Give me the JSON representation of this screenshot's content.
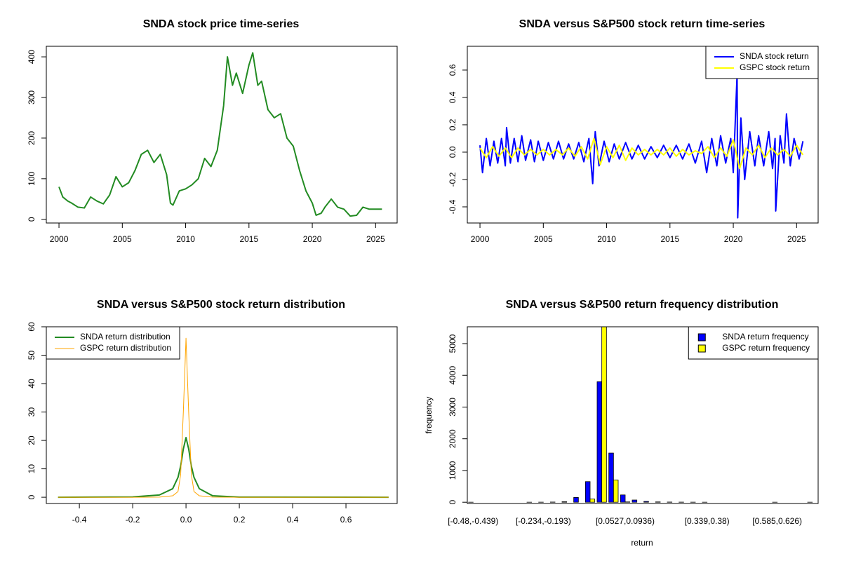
{
  "chart_data": [
    {
      "type": "line",
      "title": "SNDA stock price time-series",
      "color": "#228b22",
      "x": [
        2000,
        2000.3,
        2000.7,
        2001,
        2001.5,
        2002,
        2002.5,
        2003,
        2003.5,
        2004,
        2004.5,
        2005,
        2005.5,
        2006,
        2006.5,
        2007,
        2007.5,
        2008,
        2008.5,
        2008.8,
        2009,
        2009.5,
        2010,
        2010.5,
        2011,
        2011.5,
        2012,
        2012.5,
        2013,
        2013.3,
        2013.7,
        2014,
        2014.5,
        2015,
        2015.3,
        2015.7,
        2016,
        2016.5,
        2017,
        2017.5,
        2018,
        2018.5,
        2019,
        2019.5,
        2020,
        2020.3,
        2020.7,
        2021,
        2021.5,
        2022,
        2022.5,
        2023,
        2023.5,
        2024,
        2024.5,
        2025.5
      ],
      "values": [
        80,
        55,
        45,
        40,
        30,
        28,
        55,
        45,
        38,
        60,
        105,
        80,
        90,
        120,
        160,
        170,
        140,
        160,
        110,
        40,
        35,
        70,
        75,
        85,
        100,
        150,
        130,
        170,
        280,
        400,
        330,
        360,
        310,
        380,
        410,
        330,
        340,
        270,
        250,
        260,
        200,
        180,
        120,
        70,
        40,
        10,
        15,
        30,
        50,
        30,
        25,
        8,
        10,
        30,
        25,
        25
      ],
      "xlim": [
        1999,
        2026.7
      ],
      "xticks": [
        2000,
        2005,
        2010,
        2015,
        2020,
        2025
      ],
      "ylim": [
        -9,
        426
      ],
      "yticks": [
        0,
        100,
        200,
        300,
        400
      ]
    },
    {
      "type": "line",
      "title": "SNDA versus S&P500 stock return time-series",
      "legend": "topright",
      "series": [
        {
          "name": "SNDA stock return",
          "color": "#0000ff",
          "x": [
            2000,
            2000.2,
            2000.5,
            2000.8,
            2001.1,
            2001.4,
            2001.7,
            2002,
            2002.1,
            2002.4,
            2002.7,
            2003,
            2003.3,
            2003.6,
            2004,
            2004.3,
            2004.6,
            2005,
            2005.4,
            2005.8,
            2006.2,
            2006.6,
            2007,
            2007.4,
            2007.8,
            2008.2,
            2008.6,
            2008.9,
            2009.1,
            2009.4,
            2009.8,
            2010.2,
            2010.6,
            2011,
            2011.5,
            2012,
            2012.5,
            2013,
            2013.5,
            2014,
            2014.5,
            2015,
            2015.5,
            2016,
            2016.5,
            2017,
            2017.5,
            2017.9,
            2018.3,
            2018.7,
            2019,
            2019.4,
            2019.8,
            2020,
            2020.3,
            2020.35,
            2020.6,
            2020.9,
            2021.3,
            2021.7,
            2022,
            2022.4,
            2022.8,
            2023.1,
            2023.3,
            2023.35,
            2023.7,
            2024,
            2024.2,
            2024.5,
            2024.8,
            2025.2,
            2025.5
          ],
          "values": [
            0.05,
            -0.15,
            0.1,
            -0.1,
            0.08,
            -0.08,
            0.1,
            -0.1,
            0.18,
            -0.08,
            0.1,
            -0.07,
            0.12,
            -0.06,
            0.09,
            -0.07,
            0.08,
            -0.06,
            0.07,
            -0.05,
            0.08,
            -0.05,
            0.06,
            -0.05,
            0.07,
            -0.07,
            0.1,
            -0.23,
            0.15,
            -0.1,
            0.08,
            -0.07,
            0.06,
            -0.05,
            0.07,
            -0.05,
            0.05,
            -0.05,
            0.04,
            -0.04,
            0.05,
            -0.04,
            0.05,
            -0.05,
            0.06,
            -0.08,
            0.08,
            -0.15,
            0.1,
            -0.1,
            0.12,
            -0.08,
            0.1,
            -0.15,
            0.57,
            -0.48,
            0.25,
            -0.2,
            0.15,
            -0.1,
            0.12,
            -0.1,
            0.15,
            -0.12,
            0.1,
            -0.43,
            0.12,
            -0.08,
            0.28,
            -0.1,
            0.1,
            -0.05,
            0.08
          ]
        },
        {
          "name": "GSPC stock return",
          "color": "#ffff00",
          "x": [
            2000,
            2000.5,
            2001,
            2001.5,
            2002,
            2002.5,
            2003,
            2003.5,
            2004,
            2004.5,
            2005,
            2005.5,
            2006,
            2006.5,
            2007,
            2007.5,
            2008,
            2008.5,
            2009,
            2009.5,
            2010,
            2010.5,
            2011,
            2011.5,
            2012,
            2012.5,
            2013,
            2013.5,
            2014,
            2014.5,
            2015,
            2015.5,
            2016,
            2016.5,
            2017,
            2017.5,
            2018,
            2018.5,
            2019,
            2019.5,
            2020,
            2020.5,
            2021,
            2021.5,
            2022,
            2022.5,
            2023,
            2023.5,
            2024,
            2024.5,
            2025,
            2025.5
          ],
          "values": [
            0.03,
            -0.04,
            0.04,
            -0.03,
            0.03,
            -0.04,
            0.03,
            -0.02,
            0.02,
            -0.02,
            0.02,
            -0.02,
            0.02,
            -0.02,
            0.03,
            -0.03,
            0.04,
            -0.05,
            0.1,
            -0.09,
            0.04,
            -0.04,
            0.05,
            -0.06,
            0.03,
            -0.02,
            0.02,
            -0.02,
            0.02,
            -0.02,
            0.03,
            -0.03,
            0.02,
            -0.02,
            0.01,
            -0.01,
            0.04,
            -0.04,
            0.03,
            -0.03,
            0.09,
            -0.12,
            0.03,
            -0.02,
            0.05,
            -0.04,
            0.03,
            -0.02,
            0.02,
            -0.03,
            0.05,
            -0.02
          ]
        }
      ],
      "xlim": [
        1999,
        2026.7
      ],
      "xticks": [
        2000,
        2005,
        2010,
        2015,
        2020,
        2025
      ],
      "ylim": [
        -0.518,
        0.774
      ],
      "yticks": [
        -0.4,
        -0.2,
        {
          "value": 0,
          "label": "0.0"
        },
        0.2,
        0.4,
        0.6
      ]
    },
    {
      "type": "line",
      "title": "SNDA versus S&P500 stock return distribution",
      "legend": "topleft",
      "x": [
        -0.48,
        -0.2,
        -0.1,
        -0.05,
        -0.03,
        -0.02,
        -0.01,
        0,
        0.01,
        0.02,
        0.03,
        0.05,
        0.1,
        0.2,
        0.76
      ],
      "series": [
        {
          "name": "SNDA return distribution",
          "color": "#228b22",
          "width": 2,
          "values": [
            0,
            0.1,
            0.8,
            3,
            7,
            11,
            17,
            21,
            17,
            11,
            7,
            3,
            0.5,
            0.05,
            0
          ]
        },
        {
          "name": "GSPC return distribution",
          "color": "#ffa500",
          "width": 1,
          "values": [
            0,
            0,
            0.05,
            0.5,
            2,
            8,
            30,
            56,
            30,
            8,
            2,
            0.5,
            0.05,
            0,
            0
          ]
        }
      ],
      "xlim": [
        -0.524,
        0.792
      ],
      "xticks": [
        -0.4,
        -0.2,
        {
          "value": 0,
          "label": "0.0"
        },
        0.2,
        0.4,
        0.6
      ],
      "ylim": [
        -2.2,
        60
      ],
      "yticks": [
        0,
        10,
        20,
        30,
        40,
        50,
        60
      ]
    },
    {
      "type": "bar",
      "title": "SNDA versus S&P500 return frequency distribution",
      "legend": "topright",
      "xlabel": "return",
      "ylabel": "frequency",
      "categories": [
        "[-0.48,-0.439)",
        null,
        null,
        null,
        null,
        null,
        "[-0.234,-0.193)",
        null,
        null,
        null,
        null,
        null,
        null,
        "[0.0527,0.0936)",
        null,
        null,
        null,
        null,
        null,
        null,
        "[0.339,0.38)",
        null,
        null,
        null,
        null,
        null,
        "[0.585,0.626)",
        null,
        null,
        null
      ],
      "series": [
        {
          "name": "SNDA return frequency",
          "color": "#0000ff",
          "values": [
            1,
            0,
            0,
            0,
            0,
            1,
            2,
            5,
            15,
            150,
            650,
            3800,
            1550,
            230,
            70,
            25,
            10,
            5,
            3,
            2,
            1,
            0,
            0,
            0,
            0,
            0,
            1,
            0,
            0,
            1
          ]
        },
        {
          "name": "GSPC return frequency",
          "color": "#ffff00",
          "values": [
            0,
            0,
            0,
            0,
            0,
            0,
            0,
            0,
            0,
            0,
            100,
            5600,
            700,
            10,
            0,
            0,
            0,
            0,
            0,
            0,
            0,
            0,
            0,
            0,
            0,
            0,
            0,
            0,
            0,
            0
          ]
        }
      ],
      "ylim": [
        -40,
        5530
      ],
      "yticks": [
        0,
        1000,
        2000,
        3000,
        4000,
        5000
      ]
    }
  ]
}
